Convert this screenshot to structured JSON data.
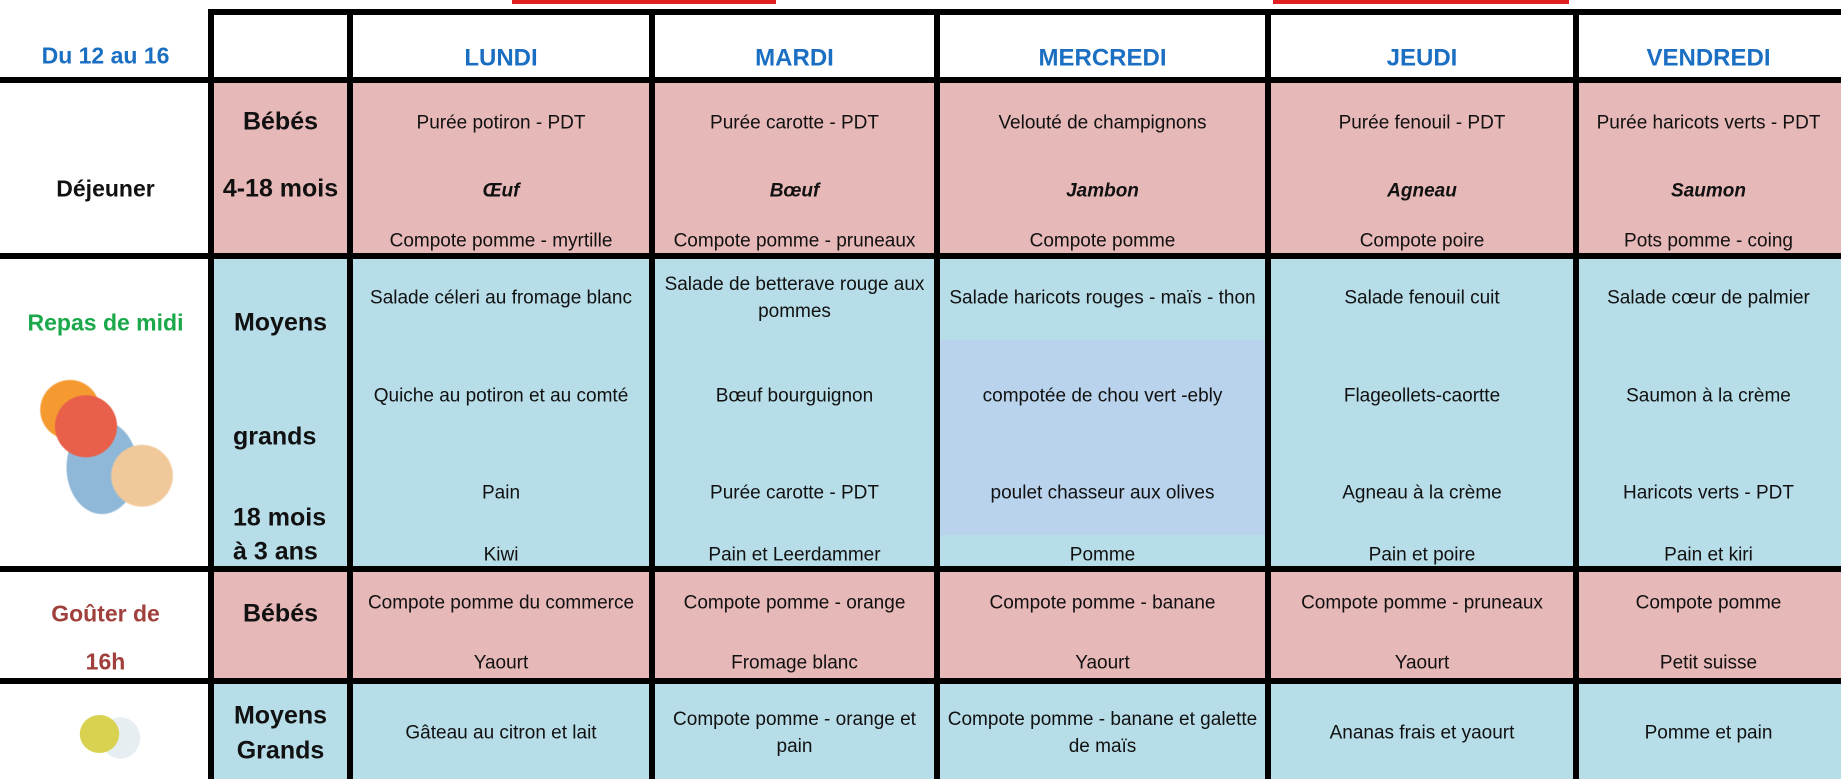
{
  "header": {
    "period": "Du 12 au 16",
    "days": [
      "LUNDI",
      "MARDI",
      "MERCREDI",
      "JEUDI",
      "VENDREDI"
    ]
  },
  "rows": [
    {
      "labels": [
        "Déjeuner"
      ],
      "groups": [
        "Bébés",
        "4-18 mois"
      ],
      "menus": [
        [
          "Purée potiron - PDT",
          "Œuf",
          "Compote pomme - myrtille"
        ],
        [
          "Purée carotte - PDT",
          "Bœuf",
          "Compote pomme - pruneaux"
        ],
        [
          "Velouté de champignons",
          "Jambon",
          "Compote pomme"
        ],
        [
          "Purée fenouil - PDT",
          "Agneau",
          "Compote poire"
        ],
        [
          "Purée haricots verts - PDT",
          "Saumon",
          "Pots pomme - coing"
        ]
      ]
    },
    {
      "labels": [
        "Repas de midi"
      ],
      "groups": [
        "Moyens",
        "grands",
        "18 mois",
        "à 3 ans"
      ],
      "menus": [
        [
          "Salade céleri au fromage blanc",
          "Quiche au potiron et au comté",
          "Pain",
          "Kiwi"
        ],
        [
          "Salade de betterave rouge aux pommes",
          "Bœuf bourguignon",
          "Purée carotte - PDT",
          "Pain et Leerdammer"
        ],
        [
          "Salade haricots rouges - maïs - thon",
          "compotée de chou vert -ebly",
          "poulet chasseur aux olives",
          "Pomme"
        ],
        [
          "Salade fenouil cuit",
          "Flageollets-caortte",
          "Agneau à la crème",
          "Pain et poire"
        ],
        [
          "Salade cœur de palmier",
          "Saumon à la crème",
          "Haricots verts - PDT",
          "Pain et kiri"
        ]
      ]
    },
    {
      "labels": [
        "Goûter de",
        "16h"
      ],
      "groups": [
        "Bébés"
      ],
      "menus": [
        [
          "Compote pomme du commerce",
          "Yaourt"
        ],
        [
          "Compote pomme - orange",
          "Fromage blanc"
        ],
        [
          "Compote pomme - banane",
          "Yaourt"
        ],
        [
          "Compote pomme - pruneaux",
          "Yaourt"
        ],
        [
          "Compote pomme",
          "Petit suisse"
        ]
      ]
    },
    {
      "groups": [
        "Moyens",
        "Grands"
      ],
      "menus": [
        [
          "Gâteau au citron et lait"
        ],
        [
          "Compote pomme - orange et pain"
        ],
        [
          "Compote pomme - banane et galette de maïs"
        ],
        [
          "Ananas frais et yaourt"
        ],
        [
          "Pomme et pain"
        ]
      ]
    }
  ]
}
